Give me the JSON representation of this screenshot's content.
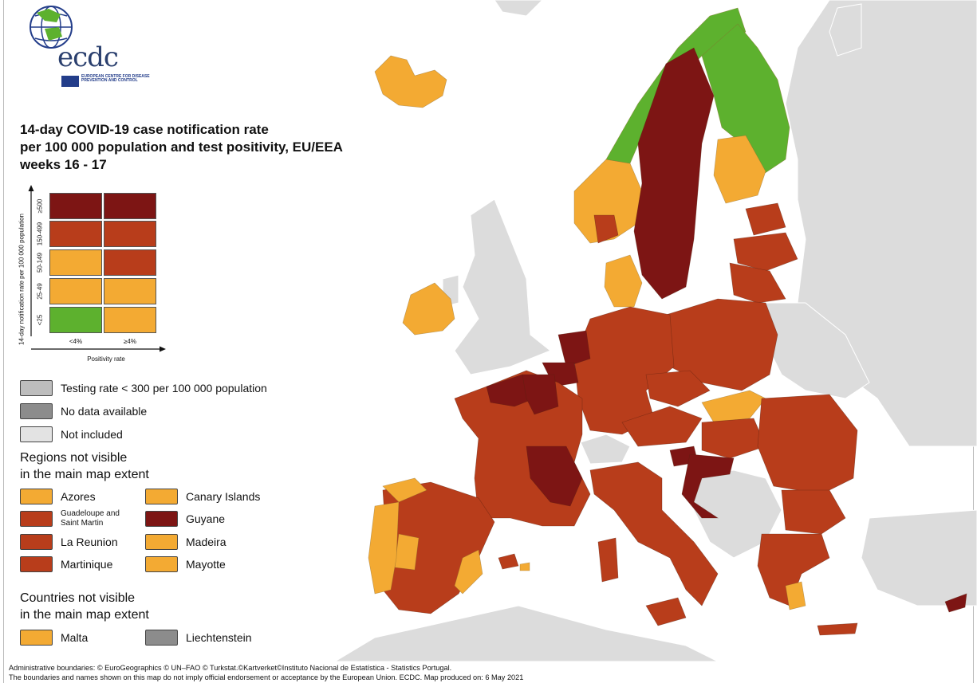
{
  "logo": {
    "text": "ecdc",
    "caption": "EUROPEAN CENTRE FOR DISEASE PREVENTION AND CONTROL"
  },
  "title": {
    "line1": "14-day COVID-19 case notification rate",
    "line2": "per 100 000 population and test positivity, EU/EEA",
    "line3": "weeks 16 - 17"
  },
  "colors": {
    "green": "#5db12e",
    "orange": "#f3aa33",
    "red": "#b83d1b",
    "darkred": "#7d1514",
    "testing": "#bdbdbd",
    "nodata": "#8c8c8c",
    "notincluded": "#e3e3e3"
  },
  "matrix": {
    "y_axis_title": "14-day notification rate per 100 000 population",
    "x_axis_title": "Positivity rate",
    "columns": [
      "<4%",
      "≥4%"
    ],
    "rows": [
      {
        "label": "≥500",
        "cells": [
          "darkred",
          "darkred"
        ]
      },
      {
        "label": "150-499",
        "cells": [
          "red",
          "red"
        ]
      },
      {
        "label": "50-149",
        "cells": [
          "orange",
          "red"
        ]
      },
      {
        "label": "25-49",
        "cells": [
          "orange",
          "orange"
        ]
      },
      {
        "label": "<25",
        "cells": [
          "green",
          "orange"
        ]
      }
    ]
  },
  "legend": {
    "testing_rate": "Testing rate < 300 per 100 000 population",
    "no_data": "No data available",
    "not_included": "Not included",
    "regions_heading_1": "Regions not visible",
    "regions_heading_2": "in the main map extent",
    "regions": [
      {
        "name": "Azores",
        "color": "orange"
      },
      {
        "name": "Canary Islands",
        "color": "orange"
      },
      {
        "name": "Guadeloupe and Saint Martin",
        "color": "red"
      },
      {
        "name": "Guyane",
        "color": "darkred"
      },
      {
        "name": "La Reunion",
        "color": "red"
      },
      {
        "name": "Madeira",
        "color": "orange"
      },
      {
        "name": "Martinique",
        "color": "red"
      },
      {
        "name": "Mayotte",
        "color": "orange"
      }
    ],
    "countries_heading_1": "Countries not visible",
    "countries_heading_2": "in the main map extent",
    "countries": [
      {
        "name": "Malta",
        "color": "orange"
      },
      {
        "name": "Liechtenstein",
        "color": "nodata"
      }
    ]
  },
  "footer": {
    "line1": "Administrative boundaries: © EuroGeographics © UN–FAO © Turkstat.©Kartverket©Instituto Nacional de Estatística - Statistics Portugal.",
    "line2": "The boundaries and names shown on this map do not imply official endorsement or acceptance by the European Union. ECDC. Map produced on: 6 May 2021"
  }
}
